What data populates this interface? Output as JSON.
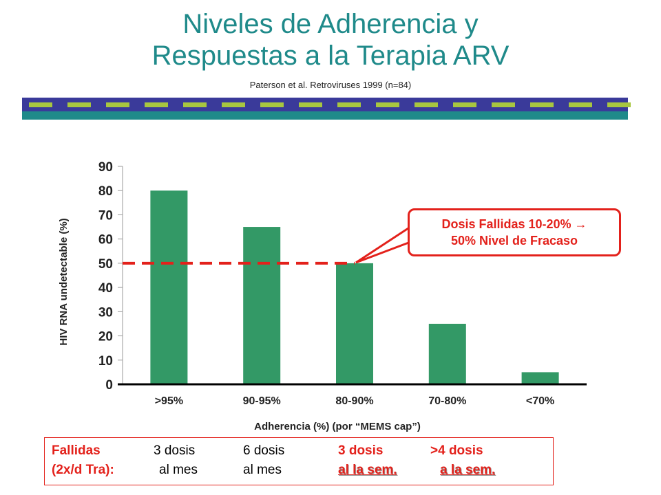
{
  "title_line1": "Niveles de Adherencia y",
  "title_line2": "Respuestas a la Terapia ARV",
  "subtitle": "Paterson et al. Retroviruses 1999 (n=84)",
  "colors": {
    "title": "#1f8a8a",
    "band_dark": "#3a3a9a",
    "band_dashes": "#a8c640",
    "band_bottom": "#1f8a8a",
    "bar": "#339966",
    "highlight": "#e3211b"
  },
  "chart_data": {
    "type": "bar",
    "categories": [
      ">95%",
      "90-95%",
      "80-90%",
      "70-80%",
      "<70%"
    ],
    "values": [
      80,
      65,
      50,
      25,
      5
    ],
    "ylabel": "HIV RNA undetectable (%)",
    "xlabel": "Adherencia (%) (por “MEMS cap”)",
    "ylim": [
      0,
      90
    ],
    "yticks": [
      0,
      10,
      20,
      30,
      40,
      50,
      60,
      70,
      80,
      90
    ],
    "reference_line": 50,
    "grid": false
  },
  "callout": {
    "line1": "Dosis Fallidas 10-20% →",
    "line2": "50% Nivel de Fracaso"
  },
  "legend": {
    "row1": [
      "Fallidas",
      "3 dosis",
      "6 dosis",
      "3 dosis",
      ">4 dosis"
    ],
    "row2": [
      "(2x/d Tra):",
      "al mes",
      "al mes",
      "al la sem.",
      "a la sem."
    ]
  }
}
